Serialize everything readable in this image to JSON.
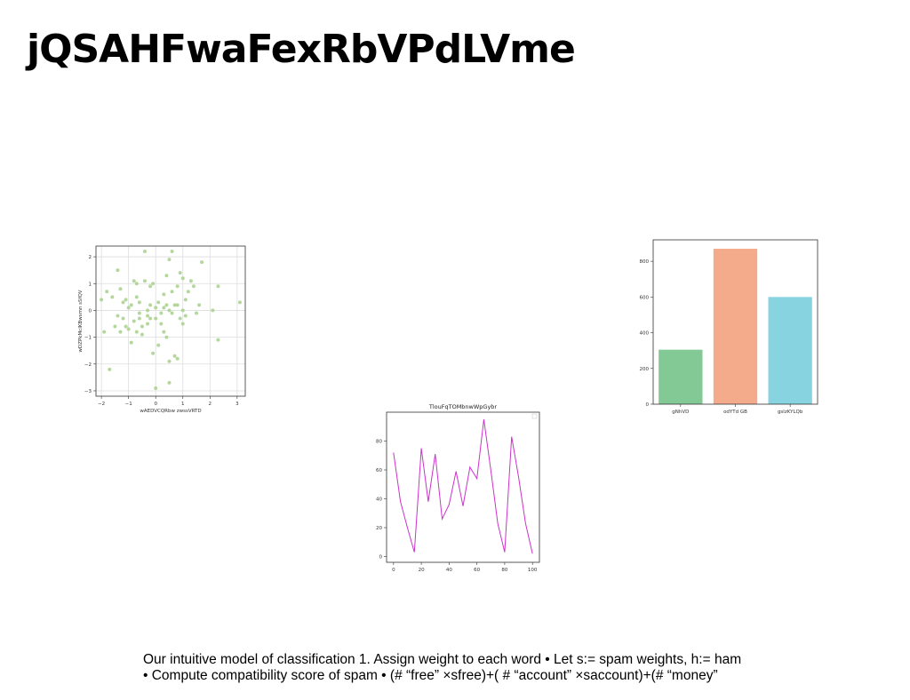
{
  "slide": {
    "title": "jQSAHFwaFexRbVPdLVme",
    "text_lines": [
      "Our intuitive model of classification 1. Assign weight to each word • Let s:= spam weights, h:= ham",
      "• Compute compatibility score of spam • (# “free” ×sfree)+( # “account” ×saccount)+(# “money”"
    ]
  },
  "chart_data": [
    {
      "type": "scatter",
      "title": "",
      "xlabel": "wAEDVCQRbw zwssVRTD",
      "ylabel": "wDZPkMcIKBwsmn sSfQV",
      "xlim": [
        -2.2,
        3.3
      ],
      "ylim": [
        -3.2,
        2.4
      ],
      "xticks": [
        -2,
        -1,
        0,
        1,
        2,
        3
      ],
      "yticks": [
        -3,
        -2,
        -1,
        0,
        1,
        2
      ],
      "grid": true,
      "color": "#a8d08d",
      "points": [
        [
          -2.0,
          0.4
        ],
        [
          -1.9,
          -0.8
        ],
        [
          -1.8,
          0.7
        ],
        [
          -1.7,
          -2.2
        ],
        [
          -1.6,
          0.5
        ],
        [
          -1.5,
          -0.6
        ],
        [
          -1.4,
          1.5
        ],
        [
          -1.4,
          -0.2
        ],
        [
          -1.3,
          0.8
        ],
        [
          -1.3,
          -0.8
        ],
        [
          -1.2,
          0.3
        ],
        [
          -1.1,
          0.4
        ],
        [
          -1.1,
          -0.6
        ],
        [
          -1.0,
          0.1
        ],
        [
          -1.0,
          -0.7
        ],
        [
          -0.9,
          0.2
        ],
        [
          -0.9,
          -1.2
        ],
        [
          -0.8,
          1.1
        ],
        [
          -0.8,
          -0.4
        ],
        [
          -0.7,
          0.5
        ],
        [
          -0.7,
          1.0
        ],
        [
          -0.7,
          -0.8
        ],
        [
          -0.6,
          -0.1
        ],
        [
          -0.6,
          0.3
        ],
        [
          -0.5,
          -0.6
        ],
        [
          -0.5,
          -0.9
        ],
        [
          -0.4,
          2.2
        ],
        [
          -0.4,
          1.1
        ],
        [
          -0.3,
          0.0
        ],
        [
          -0.3,
          -0.2
        ],
        [
          -0.3,
          -0.5
        ],
        [
          -0.2,
          0.9
        ],
        [
          -0.2,
          -0.3
        ],
        [
          -0.1,
          1.0
        ],
        [
          -0.1,
          -1.6
        ],
        [
          0.0,
          -0.3
        ],
        [
          0.0,
          -2.9
        ],
        [
          0.0,
          0.1
        ],
        [
          0.1,
          -1.3
        ],
        [
          0.1,
          0.3
        ],
        [
          0.2,
          -0.1
        ],
        [
          0.2,
          -0.5
        ],
        [
          0.3,
          0.1
        ],
        [
          0.3,
          -0.8
        ],
        [
          0.4,
          1.3
        ],
        [
          0.4,
          0.2
        ],
        [
          0.4,
          -1.0
        ],
        [
          0.5,
          0.0
        ],
        [
          0.5,
          -1.9
        ],
        [
          0.5,
          1.9
        ],
        [
          0.5,
          -2.7
        ],
        [
          0.6,
          0.7
        ],
        [
          0.6,
          2.2
        ],
        [
          0.7,
          0.2
        ],
        [
          0.7,
          -1.7
        ],
        [
          0.8,
          0.2
        ],
        [
          0.8,
          -1.8
        ],
        [
          0.8,
          0.9
        ],
        [
          0.9,
          1.4
        ],
        [
          0.9,
          -0.3
        ],
        [
          1.0,
          1.2
        ],
        [
          1.0,
          0.0
        ],
        [
          1.1,
          -0.2
        ],
        [
          1.1,
          0.4
        ],
        [
          1.2,
          0.7
        ],
        [
          1.3,
          1.1
        ],
        [
          1.4,
          0.9
        ],
        [
          1.5,
          -0.1
        ],
        [
          1.6,
          0.2
        ],
        [
          1.7,
          1.8
        ],
        [
          2.1,
          0.0
        ],
        [
          2.3,
          0.9
        ],
        [
          2.3,
          -1.1
        ],
        [
          3.1,
          0.3
        ],
        [
          -0.6,
          -0.3
        ],
        [
          0.3,
          0.6
        ],
        [
          -0.2,
          0.2
        ],
        [
          0.6,
          -0.1
        ],
        [
          1.0,
          -0.5
        ],
        [
          -1.2,
          -0.3
        ]
      ]
    },
    {
      "type": "bar",
      "title": "",
      "categories": [
        "gNhVD",
        "odYTd GB",
        "gslzKYLQb"
      ],
      "values": [
        305,
        870,
        600
      ],
      "colors": [
        "#82c995",
        "#f4ab8c",
        "#88d3e0"
      ],
      "ylim": [
        0,
        920
      ],
      "yticks": [
        0,
        200,
        400,
        600,
        800
      ],
      "grid": false
    },
    {
      "type": "line",
      "title": "TlouFqTOMbnwWpGybr",
      "x": [
        0,
        5,
        10,
        15,
        20,
        25,
        30,
        35,
        40,
        45,
        50,
        55,
        60,
        65,
        70,
        75,
        80,
        85,
        90,
        95,
        100
      ],
      "series": [
        {
          "values": [
            72,
            38,
            20,
            3,
            75,
            38,
            71,
            26,
            36,
            59,
            35,
            62,
            54,
            95,
            60,
            23,
            3,
            83,
            55,
            23,
            2
          ]
        }
      ],
      "xlim": [
        -5,
        105
      ],
      "ylim": [
        -4,
        100
      ],
      "xticks": [
        0,
        20,
        40,
        60,
        80,
        100
      ],
      "yticks": [
        0,
        20,
        40,
        60,
        80
      ],
      "color": "#cc33cc",
      "grid": false
    }
  ]
}
